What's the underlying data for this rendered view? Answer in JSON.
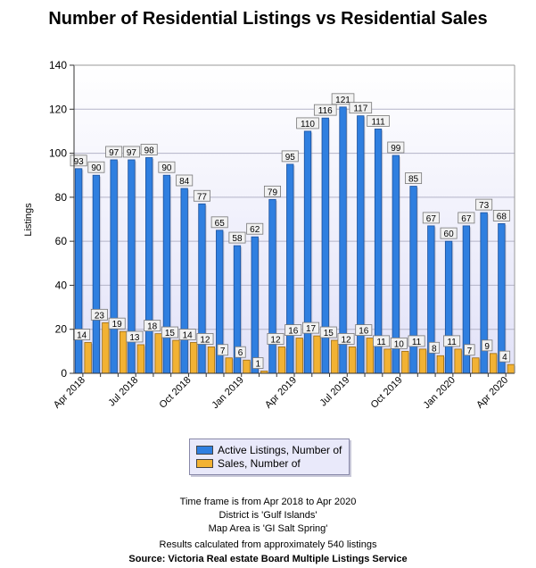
{
  "title": "Number of Residential Listings vs Residential Sales",
  "colors": {
    "listings": "#2f7fe0",
    "sales": "#f2b233",
    "plot_bg_top": "#ffffff",
    "plot_bg_bottom": "#e2e2f8"
  },
  "chart_data": {
    "type": "bar",
    "ylabel": "Listings",
    "ylim": [
      0,
      140
    ],
    "yticks": [
      0,
      20,
      40,
      60,
      80,
      100,
      120,
      140
    ],
    "grid": true,
    "legend_position": "bottom-center",
    "categories": [
      "Apr 2018",
      "May 2018",
      "Jun 2018",
      "Jul 2018",
      "Aug 2018",
      "Sep 2018",
      "Oct 2018",
      "Nov 2018",
      "Dec 2018",
      "Jan 2019",
      "Feb 2019",
      "Mar 2019",
      "Apr 2019",
      "May 2019",
      "Jun 2019",
      "Jul 2019",
      "Aug 2019",
      "Sep 2019",
      "Oct 2019",
      "Nov 2019",
      "Dec 2019",
      "Jan 2020",
      "Feb 2020",
      "Mar 2020",
      "Apr 2020"
    ],
    "xtick_labels": [
      "Apr 2018",
      "",
      "",
      "Jul 2018",
      "",
      "",
      "Oct 2018",
      "",
      "",
      "Jan 2019",
      "",
      "",
      "Apr 2019",
      "",
      "",
      "Jul 2019",
      "",
      "",
      "Oct 2019",
      "",
      "",
      "Jan 2020",
      "",
      "",
      "Apr 2020"
    ],
    "series": [
      {
        "name": "Active Listings, Number of",
        "values": [
          93,
          90,
          97,
          97,
          98,
          90,
          84,
          77,
          65,
          58,
          62,
          79,
          95,
          110,
          116,
          121,
          117,
          111,
          99,
          85,
          67,
          60,
          67,
          73,
          68
        ]
      },
      {
        "name": "Sales, Number of",
        "values": [
          14,
          23,
          19,
          13,
          18,
          15,
          14,
          12,
          7,
          6,
          1,
          12,
          16,
          17,
          15,
          12,
          16,
          11,
          10,
          11,
          8,
          11,
          7,
          9,
          4
        ]
      }
    ]
  },
  "footer": {
    "line1": "Time frame is from Apr 2018 to Apr 2020",
    "line2": "District is 'Gulf Islands'",
    "line3": "Map Area is 'GI Salt Spring'",
    "line4": "Results calculated from approximately 540 listings",
    "line5": "Source: Victoria Real estate Board Multiple Listings Service"
  }
}
